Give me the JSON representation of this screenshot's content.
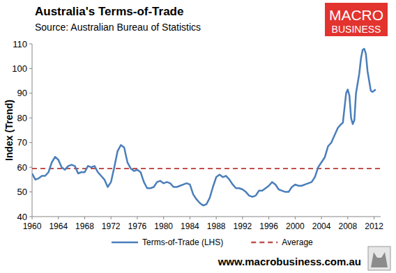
{
  "chart_data": {
    "type": "line",
    "title": "Australia's Terms-of-Trade",
    "subtitle": "Source: Australian Bureau of Statistics",
    "logo_text": [
      "MACRO",
      "BUSINESS"
    ],
    "footer": "www.macrobusiness.com.au",
    "y_label": "Index (Trend)",
    "x": [
      1960,
      1960.5,
      1961,
      1961.5,
      1962,
      1962.5,
      1963,
      1963.5,
      1964,
      1964.5,
      1965,
      1965.5,
      1966,
      1966.5,
      1967,
      1967.5,
      1968,
      1968.5,
      1969,
      1969.5,
      1970,
      1970.5,
      1971,
      1971.5,
      1972,
      1972.5,
      1973,
      1973.5,
      1974,
      1974.5,
      1975,
      1975.5,
      1976,
      1976.5,
      1977,
      1977.5,
      1978,
      1978.5,
      1979,
      1979.5,
      1980,
      1980.5,
      1981,
      1981.5,
      1982,
      1982.5,
      1983,
      1983.5,
      1984,
      1984.5,
      1985,
      1985.5,
      1986,
      1986.5,
      1987,
      1987.5,
      1988,
      1988.5,
      1989,
      1989.5,
      1990,
      1990.5,
      1991,
      1991.5,
      1992,
      1992.5,
      1993,
      1993.5,
      1994,
      1994.5,
      1995,
      1995.5,
      1996,
      1996.5,
      1997,
      1997.5,
      1998,
      1998.5,
      1999,
      1999.5,
      2000,
      2000.5,
      2001,
      2001.5,
      2002,
      2002.5,
      2003,
      2003.5,
      2004,
      2004.5,
      2005,
      2005.5,
      2006,
      2006.5,
      2007,
      2007.25,
      2007.5,
      2007.75,
      2008,
      2008.25,
      2008.5,
      2008.75,
      2009,
      2009.25,
      2009.5,
      2009.75,
      2010,
      2010.25,
      2010.5,
      2010.75,
      2011,
      2011.25,
      2011.5,
      2011.75,
      2012,
      2012.25
    ],
    "series": [
      {
        "name": "Terms-of-Trade (LHS)",
        "color": "#4a7ebb",
        "line_style": "solid",
        "values": [
          57.5,
          55,
          55.5,
          56.5,
          56.5,
          58,
          62,
          64.2,
          63,
          60,
          59,
          60.5,
          61,
          60.5,
          57.5,
          58,
          58,
          60.5,
          60,
          60.5,
          58,
          56.5,
          55,
          52,
          54,
          60,
          66.5,
          69,
          68,
          62,
          59.5,
          58.5,
          59,
          58,
          54,
          51.5,
          51.5,
          52,
          54,
          54.5,
          53.5,
          54,
          53.5,
          52,
          52,
          52.5,
          53,
          53.5,
          53,
          49,
          47,
          45.5,
          44.5,
          45,
          47.5,
          52,
          56,
          57,
          56,
          56.5,
          55,
          53,
          51.5,
          51.5,
          51,
          50,
          48.5,
          48,
          48.5,
          50.5,
          50.5,
          51.5,
          52.5,
          54,
          53,
          51,
          50.5,
          50,
          50,
          52,
          53,
          52.5,
          52.5,
          53,
          53.5,
          54,
          56,
          60,
          62,
          64,
          68.5,
          70,
          73,
          76,
          77.5,
          78,
          84,
          90,
          91.5,
          89,
          80,
          77.5,
          79,
          90,
          94,
          98,
          104,
          107.5,
          108,
          106,
          99,
          95,
          91,
          90.5,
          91,
          91.5
        ]
      }
    ],
    "reference_lines": [
      {
        "name": "Average",
        "value": 59.5,
        "color": "#c0504d",
        "line_style": "dashed"
      }
    ],
    "xlim": [
      1960,
      2013
    ],
    "xticks": [
      1960,
      1964,
      1968,
      1972,
      1976,
      1980,
      1984,
      1988,
      1992,
      1996,
      2000,
      2004,
      2008,
      2012
    ],
    "ylim": [
      40,
      110
    ],
    "yticks": [
      40,
      50,
      60,
      70,
      80,
      90,
      100,
      110
    ],
    "grid": false,
    "legend": "bottom"
  }
}
